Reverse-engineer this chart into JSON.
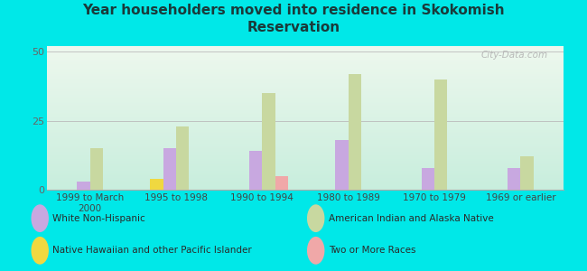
{
  "title": "Year householders moved into residence in Skokomish\nReservation",
  "categories": [
    "1999 to March\n2000",
    "1995 to 1998",
    "1990 to 1994",
    "1980 to 1989",
    "1970 to 1979",
    "1969 or earlier"
  ],
  "series": {
    "White Non-Hispanic": [
      3,
      15,
      14,
      18,
      8,
      8
    ],
    "American Indian and Alaska Native": [
      15,
      23,
      35,
      42,
      40,
      12
    ],
    "Native Hawaiian and other Pacific Islander": [
      0,
      4,
      0,
      0,
      0,
      0
    ],
    "Two or More Races": [
      0,
      0,
      5,
      0,
      0,
      0
    ]
  },
  "colors": {
    "White Non-Hispanic": "#c8a8e0",
    "American Indian and Alaska Native": "#c8d8a0",
    "Native Hawaiian and other Pacific Islander": "#f0d840",
    "Two or More Races": "#f0a8a8"
  },
  "bar_width": 0.15,
  "ylim": [
    0,
    52
  ],
  "yticks": [
    0,
    25,
    50
  ],
  "background_color": "#00e8e8",
  "plot_bg_gradient_top": "#eef8ee",
  "plot_bg_gradient_bottom": "#c8eedd",
  "watermark": "City-Data.com",
  "legend_order": [
    "White Non-Hispanic",
    "American Indian and Alaska Native",
    "Native Hawaiian and other Pacific Islander",
    "Two or More Races"
  ]
}
